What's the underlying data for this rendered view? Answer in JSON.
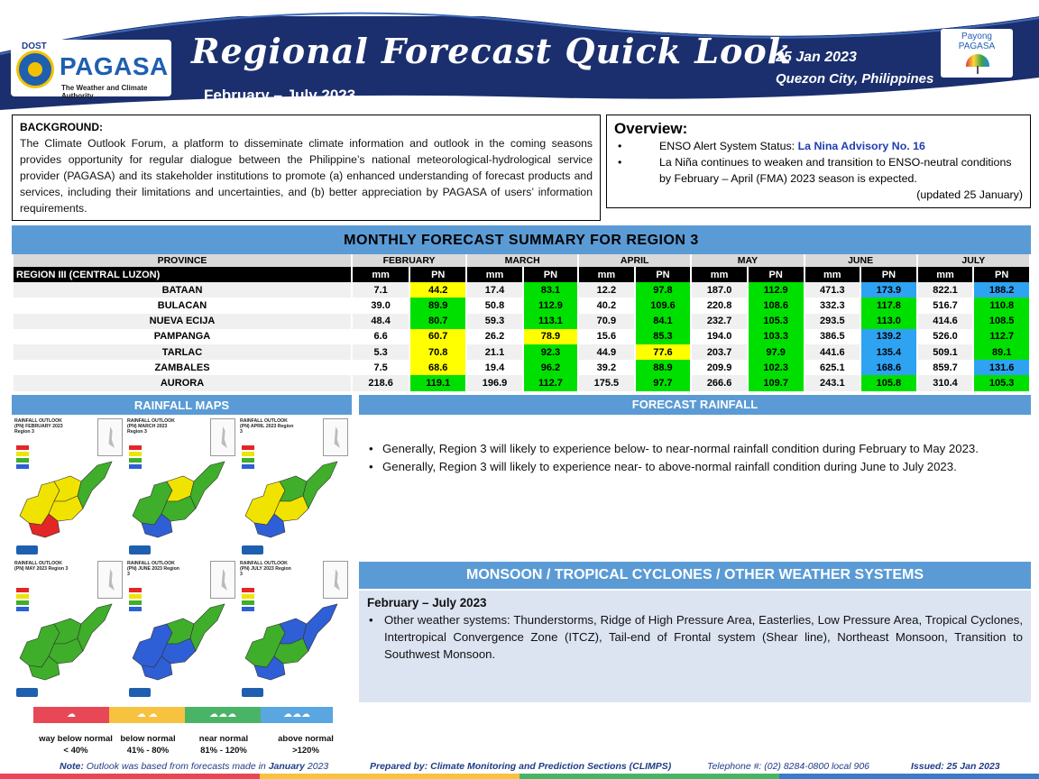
{
  "header": {
    "agency_short": "PAGASA",
    "agency_parent": "DOST",
    "agency_tagline": "The Weather and Climate Authority",
    "title": "Regional Forecast Quick Look",
    "period": "February – July 2023",
    "date": "25 Jan 2023",
    "location": "Quezon City, Philippines",
    "partner_logo": "Payong PAGASA",
    "colors": {
      "header_bg": "#1b2f6e",
      "accent": "#5b9bd5"
    }
  },
  "background": {
    "heading": "BACKGROUND:",
    "text": "The Climate Outlook Forum, a platform to disseminate climate information and outlook in the coming seasons provides opportunity for regular dialogue between the Philippine’s national meteorological-hydrological service provider (PAGASA) and its stakeholder institutions to promote (a) enhanced understanding of forecast products and services, including their limitations and uncertainties, and (b) better appreciation by PAGASA of users’ information requirements."
  },
  "overview": {
    "heading": "Overview:",
    "enso_label": "ENSO Alert System Status: ",
    "enso_status": "La Nina Advisory No. 16",
    "la_nina_text": "La Niña continues to weaken and transition to ENSO-neutral conditions by February – April (FMA) 2023  season is expected.",
    "updated": "(updated 25 January)"
  },
  "table": {
    "title": "MONTHLY FORECAST SUMMARY FOR REGION 3",
    "province_header": "PROVINCE",
    "region_label": "REGION III (CENTRAL LUZON)",
    "months": [
      "FEBRUARY",
      "MARCH",
      "APRIL",
      "MAY",
      "JUNE",
      "JULY"
    ],
    "col_mm": "mm",
    "col_pn": "PN",
    "color_key": {
      "yellow": "#ffff00",
      "green": "#00e000",
      "blue": "#2ea3f2"
    },
    "rows": [
      {
        "province": "BATAAN",
        "values": [
          [
            "7.1",
            "44.2",
            "yellow"
          ],
          [
            "17.4",
            "83.1",
            "green"
          ],
          [
            "12.2",
            "97.8",
            "green"
          ],
          [
            "187.0",
            "112.9",
            "green"
          ],
          [
            "471.3",
            "173.9",
            "blue"
          ],
          [
            "822.1",
            "188.2",
            "blue"
          ]
        ]
      },
      {
        "province": "BULACAN",
        "values": [
          [
            "39.0",
            "89.9",
            "green"
          ],
          [
            "50.8",
            "112.9",
            "green"
          ],
          [
            "40.2",
            "109.6",
            "green"
          ],
          [
            "220.8",
            "108.6",
            "green"
          ],
          [
            "332.3",
            "117.8",
            "green"
          ],
          [
            "516.7",
            "110.8",
            "green"
          ]
        ]
      },
      {
        "province": "NUEVA ECIJA",
        "values": [
          [
            "48.4",
            "80.7",
            "green"
          ],
          [
            "59.3",
            "113.1",
            "green"
          ],
          [
            "70.9",
            "84.1",
            "green"
          ],
          [
            "232.7",
            "105.3",
            "green"
          ],
          [
            "293.5",
            "113.0",
            "green"
          ],
          [
            "414.6",
            "108.5",
            "green"
          ]
        ]
      },
      {
        "province": "PAMPANGA",
        "values": [
          [
            "6.6",
            "60.7",
            "yellow"
          ],
          [
            "26.2",
            "78.9",
            "yellow"
          ],
          [
            "15.6",
            "85.3",
            "green"
          ],
          [
            "194.0",
            "103.3",
            "green"
          ],
          [
            "386.5",
            "139.2",
            "blue"
          ],
          [
            "526.0",
            "112.7",
            "green"
          ]
        ]
      },
      {
        "province": "TARLAC",
        "values": [
          [
            "5.3",
            "70.8",
            "yellow"
          ],
          [
            "21.1",
            "92.3",
            "green"
          ],
          [
            "44.9",
            "77.6",
            "yellow"
          ],
          [
            "203.7",
            "97.9",
            "green"
          ],
          [
            "441.6",
            "135.4",
            "blue"
          ],
          [
            "509.1",
            "89.1",
            "green"
          ]
        ]
      },
      {
        "province": "ZAMBALES",
        "values": [
          [
            "7.5",
            "68.6",
            "yellow"
          ],
          [
            "19.4",
            "96.2",
            "green"
          ],
          [
            "39.2",
            "88.9",
            "green"
          ],
          [
            "209.9",
            "102.3",
            "green"
          ],
          [
            "625.1",
            "168.6",
            "blue"
          ],
          [
            "859.7",
            "131.6",
            "blue"
          ]
        ]
      },
      {
        "province": "AURORA",
        "values": [
          [
            "218.6",
            "119.1",
            "green"
          ],
          [
            "196.9",
            "112.7",
            "green"
          ],
          [
            "175.5",
            "97.7",
            "green"
          ],
          [
            "266.6",
            "109.7",
            "green"
          ],
          [
            "243.1",
            "105.8",
            "green"
          ],
          [
            "310.4",
            "105.3",
            "green"
          ]
        ]
      }
    ]
  },
  "rainfall_maps": {
    "heading": "RAINFALL MAPS",
    "maps": [
      {
        "label": "RAINFALL OUTLOOK (PN) FEBRUARY 2023 Region 3"
      },
      {
        "label": "RAINFALL OUTLOOK (PN) MARCH 2023 Region 3"
      },
      {
        "label": "RAINFALL OUTLOOK (PN) APRIL 2023 Region 3"
      },
      {
        "label": "RAINFALL OUTLOOK (PN) MAY 2023 Region 3"
      },
      {
        "label": "RAINFALL OUTLOOK (PN) JUNE 2023 Region 3"
      },
      {
        "label": "RAINFALL OUTLOOK (PN) JULY 2023 Region 3"
      }
    ]
  },
  "forecast_rainfall": {
    "heading": "FORECAST RAINFALL",
    "items": [
      "Generally, Region 3 will likely to experience below- to near-normal rainfall condition during February to May 2023.",
      "Generally, Region 3 will likely to experience near- to above-normal rainfall condition during June to July 2023."
    ]
  },
  "monsoon": {
    "heading": "MONSOON / TROPICAL CYCLONES / OTHER WEATHER SYSTEMS",
    "period": "February – July 2023",
    "text": "Other weather systems: Thunderstorms,  Ridge of High Pressure Area,  Easterlies, Low Pressure Area, Tropical Cyclones, Intertropical Convergence Zone (ITCZ), Tail-end of Frontal system (Shear line), Northeast Monsoon, Transition to Southwest Monsoon."
  },
  "legend": [
    {
      "label": "way below normal",
      "range": "< 40%",
      "color": "#e84855"
    },
    {
      "label": "below normal",
      "range": "41%  -  80%",
      "color": "#f6c240"
    },
    {
      "label": "near normal",
      "range": "81% - 120%",
      "color": "#4ab466"
    },
    {
      "label": "above normal",
      "range": ">120%",
      "color": "#5aa6e0"
    }
  ],
  "footer": {
    "note_label": "Note:",
    "note_text": "Outlook was based from forecasts made in",
    "note_month": "January",
    "note_year": "2023",
    "prepared": "Prepared by: Climate Monitoring and Prediction Sections (CLIMPS)",
    "telephone": "Telephone #: (02) 8284-0800 local 906",
    "issued": "Issued: 25 Jan 2023"
  }
}
